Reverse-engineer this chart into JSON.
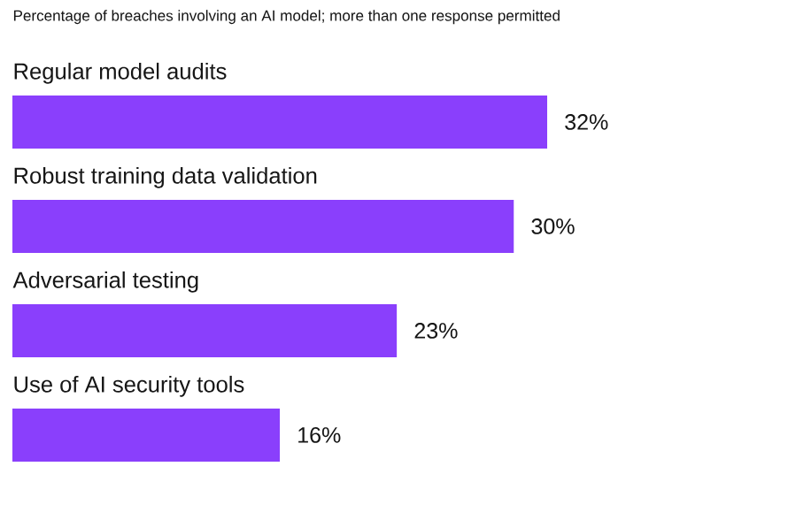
{
  "chart_data": {
    "type": "bar",
    "orientation": "horizontal",
    "title": "Percentage of breaches involving an AI model; more than one response permitted",
    "categories": [
      "Regular model audits",
      "Robust training data validation",
      "Adversarial testing",
      "Use of AI security tools"
    ],
    "values": [
      32,
      30,
      23,
      16
    ],
    "value_labels": [
      "32%",
      "30%",
      "23%",
      "16%"
    ],
    "color": "#8a3ffc"
  }
}
